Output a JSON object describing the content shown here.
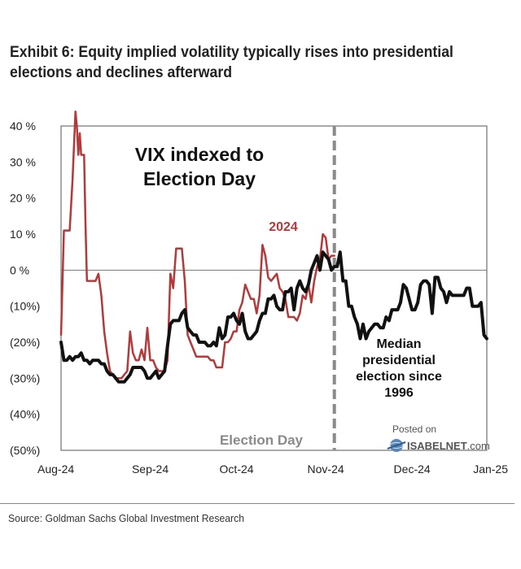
{
  "title_lines": [
    "Exhibit 6: Equity implied volatility typically rises into presidential",
    "elections and declines afterward"
  ],
  "source": "Source: Goldman Sachs Global Investment Research",
  "watermark": {
    "line1": "Posted on",
    "line2_bold": "ISABELNET",
    "line2_rest": ".com"
  },
  "chart_data": {
    "type": "line",
    "title": "VIX indexed to Election Day",
    "title_lines": [
      "VIX indexed to",
      "Election Day"
    ],
    "ylabel": "",
    "xlabel": "",
    "ylim": [
      -50,
      40
    ],
    "xlim": [
      0,
      148
    ],
    "yticks": [
      40,
      30,
      20,
      10,
      0,
      -10,
      -20,
      -30,
      -40,
      -50
    ],
    "ytick_labels": [
      "40 %",
      "30 %",
      "20 %",
      "10 %",
      "0 %",
      "(10%)",
      "(20%)",
      "(30%)",
      "(40%)",
      "(50%)"
    ],
    "xticks": [
      0,
      31,
      61,
      92,
      122,
      153
    ],
    "xtick_labels": [
      "Aug-24",
      "Sep-24",
      "Oct-24",
      "Nov-24",
      "Dec-24",
      "Jan-25"
    ],
    "election_day_x": 95,
    "election_day_label": "Election Day",
    "series": [
      {
        "name": "2024",
        "color": "#b23a3a",
        "x": [
          0,
          1,
          2,
          3,
          4,
          5,
          5.5,
          6,
          6.5,
          7,
          8,
          8.5,
          9,
          10,
          11,
          12,
          13,
          14,
          15,
          16,
          17,
          18,
          19,
          20,
          21,
          22,
          23,
          24,
          25,
          26,
          27,
          28,
          29,
          30,
          31,
          32,
          33,
          34,
          35,
          36,
          37,
          38,
          39,
          40,
          41,
          42,
          43,
          44,
          45,
          46,
          47,
          48,
          49,
          50,
          51,
          52,
          53,
          54,
          55,
          56,
          57,
          58,
          59,
          60,
          61,
          62,
          63,
          64,
          65,
          66,
          67,
          68,
          69,
          70,
          71,
          72,
          73,
          74,
          75,
          76,
          77,
          78,
          79,
          80,
          81,
          82,
          83,
          84,
          85,
          86,
          87,
          88,
          89,
          90,
          91,
          92,
          93,
          94,
          95
        ],
        "values": [
          -18,
          11,
          11,
          11,
          25,
          44,
          40,
          32,
          38,
          32,
          32,
          13,
          -3,
          -3,
          -3,
          -3,
          -1,
          -7,
          -17,
          -23,
          -28,
          -29,
          -30,
          -30,
          -30,
          -29,
          -28,
          -17,
          -23,
          -25,
          -25,
          -22,
          -25,
          -16,
          -25,
          -25,
          -27,
          -28,
          -28,
          -28,
          -25,
          -1,
          -5,
          6,
          6,
          6,
          -3,
          -18,
          -20,
          -22,
          -24,
          -24,
          -24,
          -24,
          -24,
          -25,
          -25,
          -27,
          -27,
          -27,
          -20,
          -20,
          -19,
          -17,
          -17,
          -11,
          -9,
          -4,
          -6,
          -8,
          -8,
          -12,
          -7,
          7,
          4,
          -2,
          -3,
          -2,
          -1,
          -5,
          -6,
          -8,
          -13,
          -13,
          -13,
          -14,
          -12,
          -7,
          -8,
          -4,
          -9,
          -3,
          1,
          3,
          10,
          9,
          3,
          4,
          4
        ]
      },
      {
        "name": "Median presidential election since 1996",
        "color": "#111111",
        "x": [
          0,
          1,
          2,
          3,
          4,
          5,
          6,
          7,
          8,
          9,
          10,
          11,
          12,
          13,
          14,
          15,
          16,
          17,
          18,
          19,
          20,
          21,
          22,
          23,
          24,
          25,
          26,
          27,
          28,
          29,
          30,
          31,
          32,
          33,
          34,
          35,
          36,
          37,
          38,
          39,
          40,
          41,
          42,
          43,
          44,
          45,
          46,
          47,
          48,
          49,
          50,
          51,
          52,
          53,
          54,
          55,
          56,
          57,
          58,
          59,
          60,
          61,
          62,
          63,
          64,
          65,
          66,
          67,
          68,
          69,
          70,
          71,
          72,
          73,
          74,
          75,
          76,
          77,
          78,
          79,
          80,
          81,
          82,
          83,
          84,
          85,
          86,
          87,
          88,
          89,
          90,
          91,
          92,
          93,
          94,
          95,
          96,
          97,
          98,
          99,
          100,
          101,
          102,
          103,
          104,
          105,
          106,
          107,
          108,
          109,
          110,
          111,
          112,
          113,
          114,
          115,
          116,
          117,
          118,
          119,
          120,
          121,
          122,
          123,
          124,
          125,
          126,
          127,
          128,
          129,
          130,
          131,
          132,
          133,
          134,
          135,
          136,
          137,
          138,
          139,
          140,
          141,
          142,
          143,
          144,
          145,
          146,
          147,
          148
        ],
        "values": [
          -20,
          -25,
          -25,
          -24,
          -25,
          -24,
          -24,
          -23,
          -25,
          -25,
          -26,
          -25,
          -25,
          -25,
          -26,
          -26,
          -28,
          -29,
          -29,
          -30,
          -31,
          -31,
          -31,
          -30,
          -29,
          -27,
          -27,
          -27,
          -27,
          -28,
          -30,
          -30,
          -29,
          -28,
          -30,
          -29,
          -28,
          -21,
          -15,
          -14,
          -14,
          -14,
          -12,
          -11,
          -16,
          -17,
          -18,
          -18,
          -20,
          -20,
          -20,
          -21,
          -21,
          -20,
          -21,
          -16,
          -19,
          -18,
          -13,
          -13,
          -12,
          -14,
          -15,
          -12,
          -17,
          -19,
          -19,
          -18,
          -17,
          -14,
          -12,
          -12,
          -8,
          -8,
          -7,
          -10,
          -11,
          -11,
          -6,
          -6,
          -5,
          -11,
          -5,
          -3,
          -5,
          -6,
          -4,
          0,
          2,
          4,
          0,
          5,
          4,
          3,
          0,
          1,
          1,
          5,
          -3,
          -3,
          -10,
          -10,
          -13,
          -15,
          -19,
          -15,
          -19,
          -17,
          -16,
          -15,
          -15,
          -16,
          -16,
          -13,
          -14,
          -11,
          -11,
          -11,
          -9,
          -4,
          -5,
          -8,
          -11,
          -11,
          -9,
          -4,
          -3,
          -3,
          -4,
          -12,
          -2,
          -2,
          -5,
          -6,
          -9,
          -6,
          -7,
          -7,
          -7,
          -7,
          -7,
          -5,
          -5,
          -10,
          -10,
          -10,
          -9,
          -18,
          -19
        ]
      }
    ],
    "annotations": {
      "series_label_2024": "2024",
      "median_label_lines": [
        "Median",
        "presidential",
        "election since",
        "1996"
      ]
    }
  }
}
